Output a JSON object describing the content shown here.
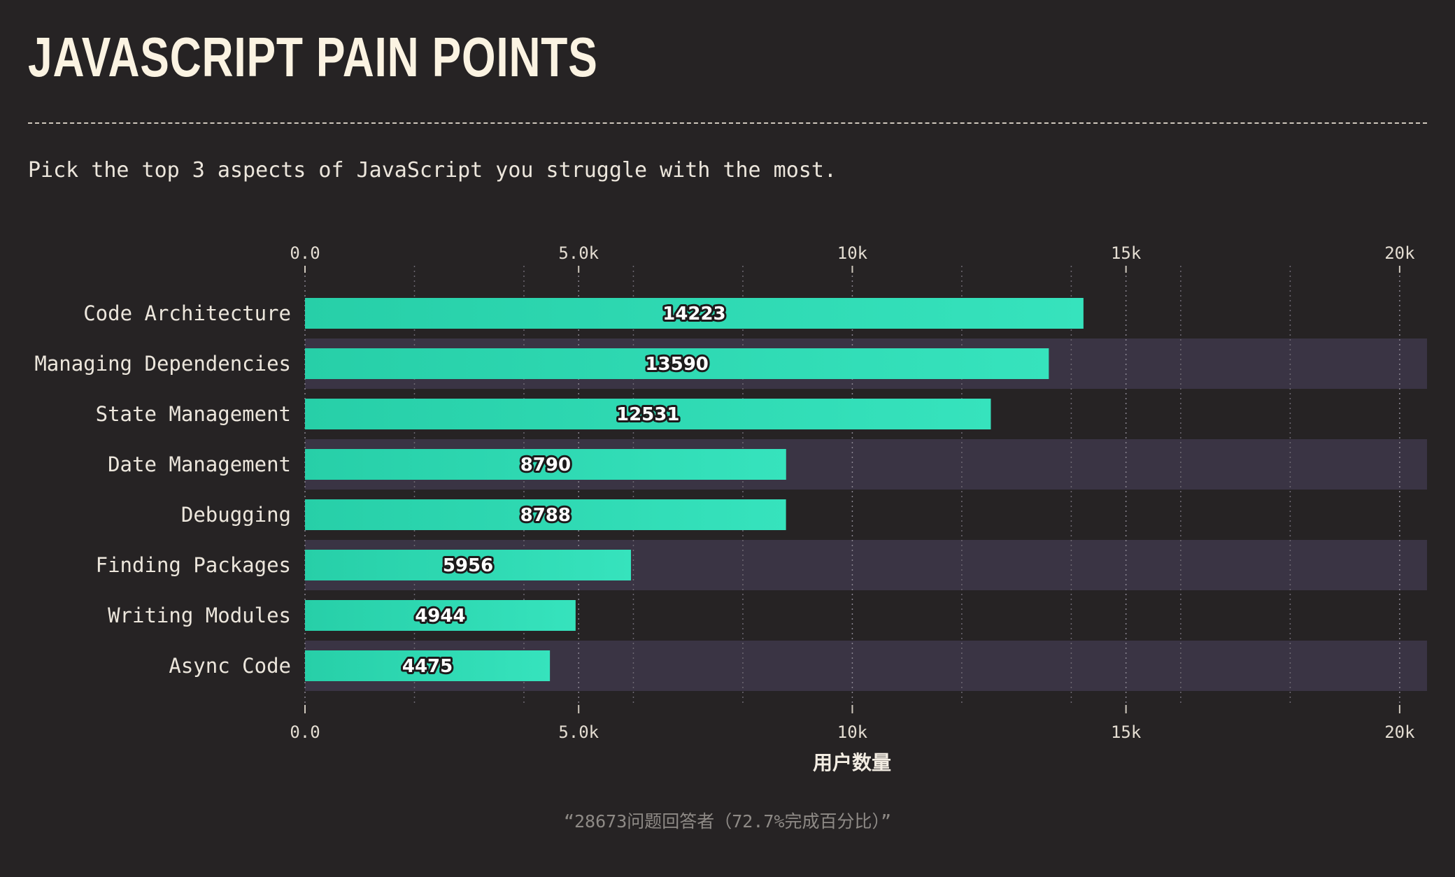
{
  "page": {
    "title": "JAVASCRIPT PAIN POINTS",
    "subtitle": "Pick the top 3 aspects of JavaScript you struggle with the most.",
    "footnote": "“28673问题回答者（72.7%完成百分比）”"
  },
  "colors": {
    "background": "#262324",
    "bar": "#2ed3ac",
    "bar_light": "#35e3bd",
    "row_band": "#3a3444"
  },
  "chart_data": {
    "type": "bar",
    "orientation": "horizontal",
    "categories": [
      "Code Architecture",
      "Managing Dependencies",
      "State Management",
      "Date Management",
      "Debugging",
      "Finding Packages",
      "Writing Modules",
      "Async Code"
    ],
    "values": [
      14223,
      13590,
      12531,
      8790,
      8788,
      5956,
      4944,
      4475
    ],
    "xlabel": "用户数量",
    "xlim": [
      0,
      20500
    ],
    "xticks": [
      {
        "value": 0,
        "label": "0.0"
      },
      {
        "value": 5000,
        "label": "5.0k"
      },
      {
        "value": 10000,
        "label": "10k"
      },
      {
        "value": 15000,
        "label": "15k"
      },
      {
        "value": 20000,
        "label": "20k"
      }
    ],
    "minor_gridlines": [
      2000,
      4000,
      6000,
      8000,
      12000,
      14000,
      16000,
      18000
    ],
    "grid": true,
    "data_labels": true
  }
}
